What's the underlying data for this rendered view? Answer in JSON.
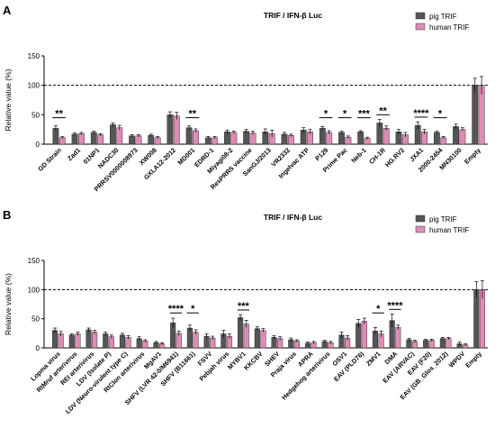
{
  "chart_data": [
    {
      "panel_label": "A",
      "type": "bar",
      "title": "TRIF / IFN-β Luc",
      "ylabel": "Relative value (%)",
      "ylim": [
        0,
        150
      ],
      "yticks": [
        "0",
        "50",
        "100",
        "150"
      ],
      "reference_line": 100,
      "legend": [
        "pig TRIF",
        "human TRIF"
      ],
      "legend_position": "top-right",
      "colors": [
        "#555555",
        "#e08bb7"
      ],
      "categories": [
        "GD Strain",
        "Zad1",
        "01NP1",
        "NADC30",
        "PRRSV0000008973",
        "XW008",
        "GXLA12-2012",
        "MD001",
        "EDRD-1",
        "Miyagi08-2",
        "ResPRRS vaccine",
        "SanGJ/2013",
        "VR2332",
        "Ingelvac ATP",
        "P129",
        "Prime Pac",
        "Neb-1",
        "CH-1R",
        "HG.RV2",
        "JXA1",
        "2000-2454",
        "MN30100",
        "Empty"
      ],
      "series": [
        {
          "name": "pig TRIF",
          "values": [
            27,
            17,
            20,
            33,
            14,
            15,
            50,
            28,
            11,
            21,
            22,
            21,
            17,
            24,
            27,
            20,
            21,
            36,
            21,
            32,
            20,
            30,
            100
          ],
          "errors": [
            4,
            2,
            2,
            3,
            2,
            2,
            5,
            3,
            2,
            3,
            3,
            5,
            3,
            4,
            3,
            2,
            2,
            6,
            4,
            6,
            2,
            4,
            12
          ]
        },
        {
          "name": "human TRIF",
          "values": [
            11,
            18,
            16,
            28,
            14,
            11,
            48,
            23,
            11,
            20,
            19,
            18,
            15,
            21,
            20,
            12,
            10,
            27,
            16,
            21,
            11,
            25,
            100
          ],
          "errors": [
            2,
            2,
            2,
            4,
            2,
            2,
            6,
            3,
            2,
            2,
            3,
            6,
            2,
            4,
            3,
            2,
            2,
            4,
            4,
            4,
            2,
            3,
            15
          ]
        }
      ],
      "significance": [
        {
          "category": "GD Strain",
          "label": "**"
        },
        {
          "category": "MD001",
          "label": "**"
        },
        {
          "category": "P129",
          "label": "*"
        },
        {
          "category": "Prime Pac",
          "label": "*"
        },
        {
          "category": "Neb-1",
          "label": "***"
        },
        {
          "category": "CH-1R",
          "label": "**"
        },
        {
          "category": "JXA1",
          "label": "****"
        },
        {
          "category": "2000-2454",
          "label": "*"
        }
      ]
    },
    {
      "panel_label": "B",
      "type": "bar",
      "title": "TRIF / IFN-β Luc",
      "ylabel": "Relative value (%)",
      "ylim": [
        0,
        150
      ],
      "yticks": [
        "0",
        "50",
        "100",
        "150"
      ],
      "reference_line": 100,
      "legend": [
        "pig TRIF",
        "human TRIF"
      ],
      "legend_position": "top-right",
      "colors": [
        "#555555",
        "#e08bb7"
      ],
      "categories": [
        "Lopma virus",
        "RtMruf arterivirus",
        "REI arterivirus",
        "LDV (Isolate P)",
        "LDV (Neuro-virulent type C)",
        "RtClon arterivirus",
        "MgAV1",
        "SHFV (LVR 42-0/M6941)",
        "SHFV (B11661)",
        "FSVV",
        "Pebjah virus",
        "MYBV1",
        "KKCBV",
        "SHEV",
        "Praja virus",
        "APRA",
        "Hedgehog arterivirus",
        "OSV1",
        "EAV (PLD76)",
        "ZMV1",
        "DMA",
        "EAV (ARVAC)",
        "EAV (F20)",
        "EAV (GB_Glos_2012)",
        "WPDV",
        "Empty"
      ],
      "series": [
        {
          "name": "pig TRIF",
          "values": [
            30,
            22,
            31,
            24,
            22,
            16,
            9,
            43,
            34,
            20,
            24,
            52,
            33,
            18,
            14,
            8,
            11,
            22,
            42,
            29,
            47,
            14,
            13,
            16,
            7,
            100
          ],
          "errors": [
            4,
            2,
            3,
            3,
            3,
            3,
            2,
            8,
            5,
            4,
            6,
            5,
            3,
            3,
            3,
            2,
            2,
            5,
            7,
            6,
            11,
            2,
            2,
            2,
            3,
            14
          ]
        },
        {
          "name": "human TRIF",
          "values": [
            24,
            24,
            27,
            19,
            18,
            12,
            7,
            25,
            27,
            17,
            20,
            41,
            30,
            16,
            12,
            9,
            9,
            17,
            46,
            24,
            35,
            11,
            13,
            16,
            5,
            100
          ],
          "errors": [
            4,
            3,
            3,
            3,
            3,
            2,
            2,
            4,
            4,
            3,
            4,
            6,
            3,
            3,
            2,
            2,
            2,
            4,
            5,
            5,
            4,
            2,
            2,
            2,
            2,
            15
          ]
        }
      ],
      "significance": [
        {
          "category": "SHFV (LVR 42-0/M6941)",
          "label": "****"
        },
        {
          "category": "SHFV (B11661)",
          "label": "*"
        },
        {
          "category": "MYBV1",
          "label": "***"
        },
        {
          "category": "ZMV1",
          "label": "*"
        },
        {
          "category": "DMA",
          "label": "****"
        }
      ]
    }
  ]
}
